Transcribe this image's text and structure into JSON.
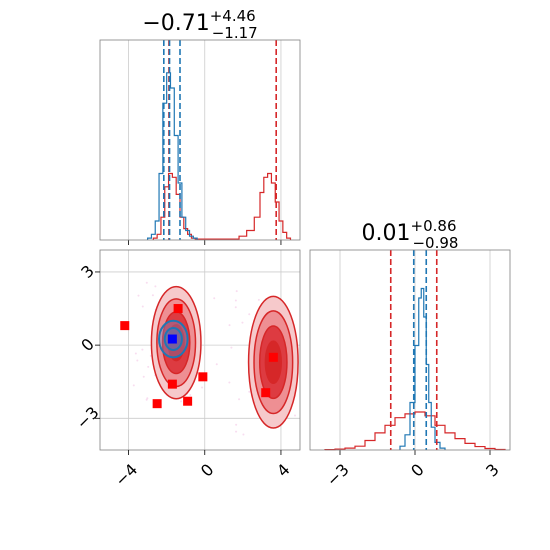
{
  "chart_data": {
    "type": "corner",
    "panels": [
      {
        "panel": "hist-param-1",
        "type": "histogram",
        "title": {
          "base": "−0.71",
          "sup": "+4.46",
          "sub": "−1.17"
        },
        "xlim": [
          -5.5,
          5.0
        ],
        "xticks": [
          -4,
          0,
          4
        ],
        "show_ticklabels": false,
        "red_quantile_lines": [
          -1.88,
          3.75
        ],
        "blue_quantile_lines": [
          -2.15,
          -1.85,
          -1.3
        ],
        "series": [
          {
            "name": "red",
            "color": "#d62728",
            "x": [
              -2.6,
              -2.4,
              -2.2,
              -2.0,
              -1.8,
              -1.6,
              -1.4,
              -1.2,
              -1.0,
              -0.8,
              -0.6,
              -0.4,
              1.6,
              2.0,
              2.4,
              2.8,
              3.0,
              3.2,
              3.4,
              3.6,
              3.8,
              4.0,
              4.2,
              4.4
            ],
            "y": [
              0.01,
              0.03,
              0.12,
              0.28,
              0.35,
              0.33,
              0.24,
              0.12,
              0.06,
              0.03,
              0.01,
              0.005,
              0.005,
              0.02,
              0.05,
              0.12,
              0.25,
              0.33,
              0.35,
              0.3,
              0.2,
              0.1,
              0.04,
              0.01
            ]
          },
          {
            "name": "blue",
            "color": "#1f77b4",
            "x": [
              -2.9,
              -2.7,
              -2.5,
              -2.3,
              -2.1,
              -1.9,
              -1.7,
              -1.5,
              -1.3,
              -1.1,
              -0.9,
              -0.7,
              -0.5
            ],
            "y": [
              0.01,
              0.03,
              0.1,
              0.35,
              0.72,
              0.88,
              0.8,
              0.55,
              0.3,
              0.12,
              0.05,
              0.02,
              0.01
            ]
          }
        ],
        "ymax": 1.0
      },
      {
        "panel": "hist-param-2",
        "type": "histogram",
        "title": {
          "base": "0.01",
          "sup": "+0.86",
          "sub": "−0.98"
        },
        "xlim": [
          -4.2,
          3.8
        ],
        "xticks": [
          -3,
          0,
          3
        ],
        "ticklabels": [
          "−3",
          "0",
          "3"
        ],
        "red_quantile_lines": [
          -0.97,
          0.87
        ],
        "blue_quantile_lines": [
          -0.05,
          0.45
        ],
        "series": [
          {
            "name": "red",
            "color": "#d62728",
            "x": [
              -3.4,
              -3.0,
              -2.6,
              -2.2,
              -1.8,
              -1.4,
              -1.0,
              -0.6,
              -0.2,
              0.2,
              0.6,
              1.0,
              1.4,
              1.8,
              2.2,
              2.6,
              3.0,
              3.4
            ],
            "y": [
              0.002,
              0.005,
              0.01,
              0.02,
              0.05,
              0.09,
              0.13,
              0.17,
              0.19,
              0.2,
              0.18,
              0.13,
              0.09,
              0.06,
              0.035,
              0.018,
              0.008,
              0.003
            ]
          },
          {
            "name": "blue",
            "color": "#1f77b4",
            "x": [
              -0.5,
              -0.3,
              -0.1,
              0.1,
              0.2,
              0.3,
              0.4,
              0.5,
              0.6,
              0.7,
              0.9,
              1.1
            ],
            "y": [
              0.02,
              0.08,
              0.25,
              0.55,
              0.8,
              0.85,
              0.7,
              0.45,
              0.25,
              0.12,
              0.04,
              0.01
            ]
          }
        ],
        "ymax": 1.0
      },
      {
        "panel": "scatter-param-1-vs-2",
        "type": "contour",
        "xlim": [
          -5.5,
          5.0
        ],
        "ylim": [
          -4.3,
          3.9
        ],
        "xticks": [
          -4,
          0,
          4
        ],
        "xticklabels": [
          "−4",
          "0",
          "4"
        ],
        "yticks": [
          -3,
          0,
          3
        ],
        "yticklabels": [
          "−3",
          "0",
          "3"
        ],
        "red_blobs": [
          {
            "cx": -1.5,
            "cy": 0.1,
            "rx": 1.3,
            "ry": 2.3
          },
          {
            "cx": 3.6,
            "cy": -0.7,
            "rx": 1.3,
            "ry": 2.7
          }
        ],
        "blue_blob": {
          "cx": -1.65,
          "cy": 0.25,
          "rx": 0.75,
          "ry": 0.75
        },
        "red_points": [
          {
            "x": -4.2,
            "y": 0.8
          },
          {
            "x": -1.4,
            "y": 1.5
          },
          {
            "x": -2.5,
            "y": -2.4
          },
          {
            "x": -1.7,
            "y": -1.6
          },
          {
            "x": -0.9,
            "y": -2.3
          },
          {
            "x": -0.1,
            "y": -1.3
          },
          {
            "x": 3.6,
            "y": -0.5
          },
          {
            "x": 3.2,
            "y": -1.95
          }
        ],
        "blue_point": {
          "x": -1.7,
          "y": 0.25
        }
      }
    ]
  }
}
